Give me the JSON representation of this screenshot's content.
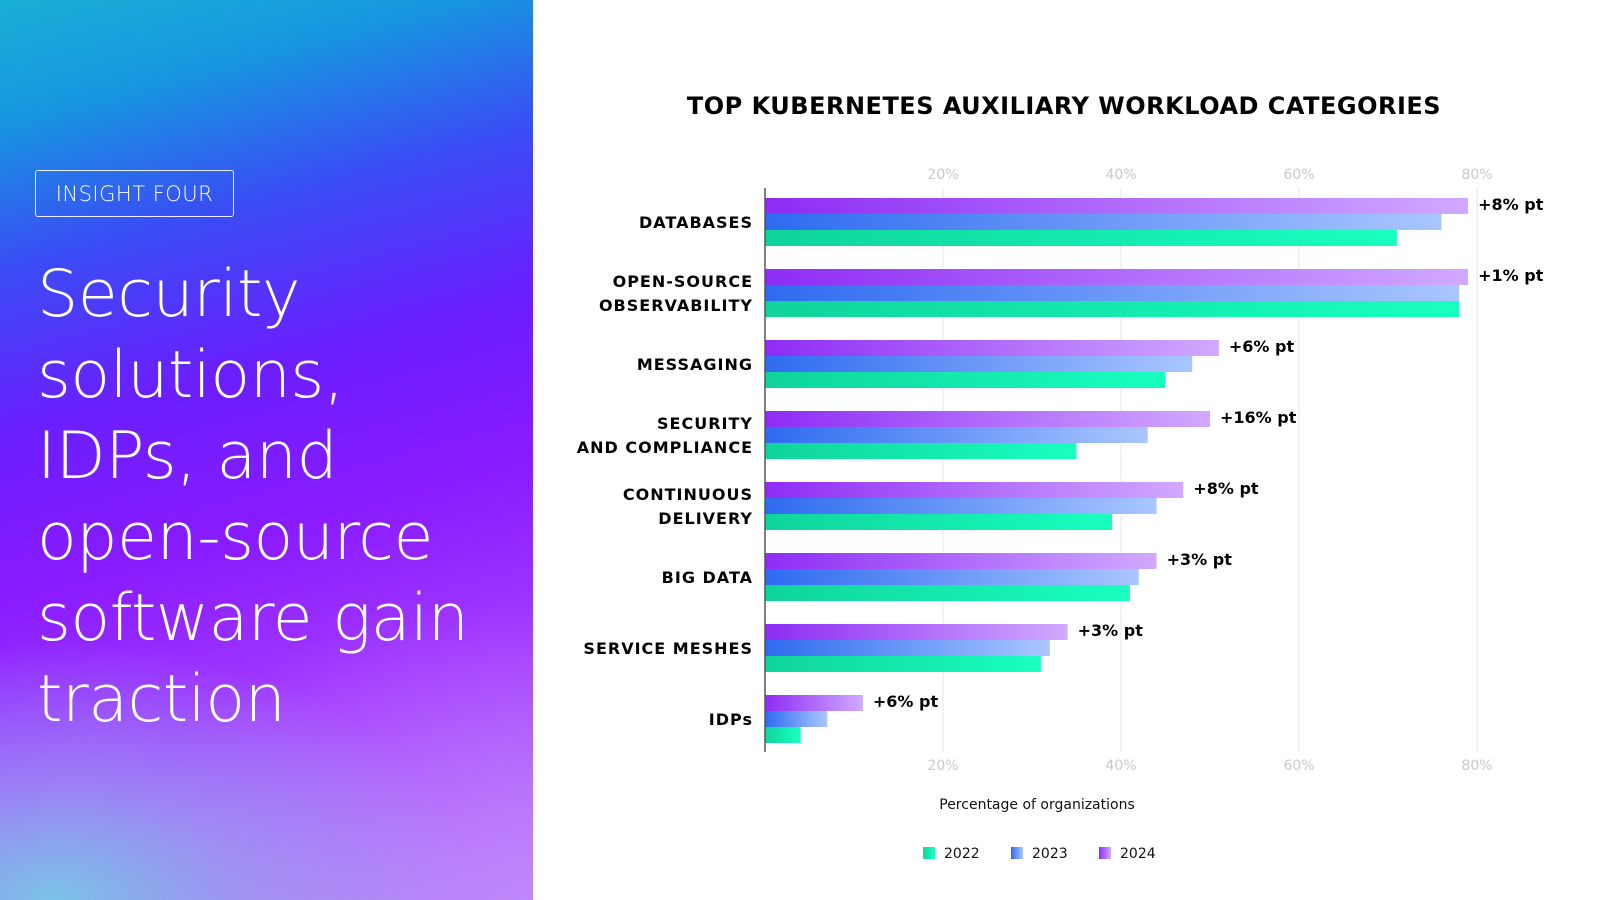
{
  "left_panel": {
    "badge": "INSIGHT FOUR",
    "headline": "Security\nsolutions,\nIDPs, and\nopen-source\nsoftware gain\ntraction"
  },
  "colors": {
    "s2022": [
      "#10d49a",
      "#18ffc0"
    ],
    "s2023": [
      "#2e6bf0",
      "#a9c6ff"
    ],
    "s2024": [
      "#8e2cf5",
      "#d1a9ff"
    ],
    "axis": "#555555",
    "grid": "#e4e4e4"
  },
  "chart_data": {
    "type": "bar",
    "orientation": "horizontal",
    "title": "TOP KUBERNETES AUXILIARY WORKLOAD CATEGORIES",
    "xlabel": "Percentage of organizations",
    "xlim": [
      0,
      80
    ],
    "xticks": [
      "20%",
      "40%",
      "60%",
      "80%"
    ],
    "grid": true,
    "legend_position": "bottom",
    "categories": [
      [
        "DATABASES"
      ],
      [
        "OPEN-SOURCE",
        "OBSERVABILITY"
      ],
      [
        "MESSAGING"
      ],
      [
        "SECURITY",
        "AND COMPLIANCE"
      ],
      [
        "CONTINUOUS",
        "DELIVERY"
      ],
      [
        "BIG DATA"
      ],
      [
        "SERVICE MESHES"
      ],
      [
        "IDPs"
      ]
    ],
    "series": [
      {
        "name": "2024",
        "values": [
          79,
          79,
          51,
          50,
          47,
          44,
          34,
          11
        ]
      },
      {
        "name": "2023",
        "values": [
          76,
          78,
          48,
          43,
          44,
          42,
          32,
          7
        ]
      },
      {
        "name": "2022",
        "values": [
          71,
          78,
          45,
          35,
          39,
          41,
          31,
          4
        ]
      }
    ],
    "annotations": [
      "+8% pt",
      "+1% pt",
      "+6% pt",
      "+16% pt",
      "+8% pt",
      "+3% pt",
      "+3% pt",
      "+6% pt"
    ],
    "legend": [
      "2022",
      "2023",
      "2024"
    ]
  }
}
